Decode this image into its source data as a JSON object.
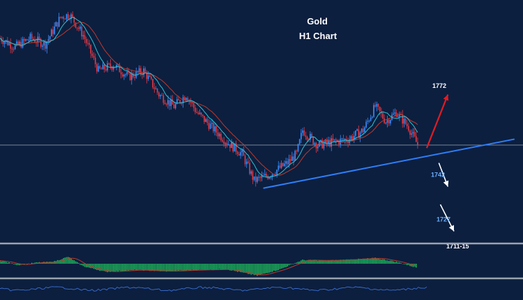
{
  "chart_data": {
    "type": "candlestick",
    "title": "Gold",
    "subtitle": "H1 Chart",
    "xlabel": "",
    "ylabel": "",
    "grid": false,
    "current_price": 1752,
    "ylim": [
      1721,
      1798
    ],
    "colors": {
      "background": "#0c1f3f",
      "candle_up": "#3d8dff",
      "candle_down": "#e63946",
      "ma_fast": "#2ec4d6",
      "ma_slow": "#c0392b",
      "trendline": "#2f7df6",
      "up_arrow": "#e31b23",
      "down_arrow": "#ffffff",
      "histogram": "#22c55e",
      "divider": "#9aa3ad",
      "level_light": "#ffffff",
      "level_blue": "#6aaeff"
    },
    "price_path": [
      {
        "i": 0,
        "p": 1788
      },
      {
        "i": 10,
        "p": 1785
      },
      {
        "i": 20,
        "p": 1788
      },
      {
        "i": 30,
        "p": 1786
      },
      {
        "i": 40,
        "p": 1795
      },
      {
        "i": 46,
        "p": 1796
      },
      {
        "i": 55,
        "p": 1789
      },
      {
        "i": 65,
        "p": 1777
      },
      {
        "i": 75,
        "p": 1779
      },
      {
        "i": 85,
        "p": 1775
      },
      {
        "i": 95,
        "p": 1777
      },
      {
        "i": 105,
        "p": 1769
      },
      {
        "i": 115,
        "p": 1765
      },
      {
        "i": 123,
        "p": 1769
      },
      {
        "i": 130,
        "p": 1763
      },
      {
        "i": 140,
        "p": 1758
      },
      {
        "i": 150,
        "p": 1753
      },
      {
        "i": 160,
        "p": 1749
      },
      {
        "i": 168,
        "p": 1740
      },
      {
        "i": 178,
        "p": 1742
      },
      {
        "i": 190,
        "p": 1746
      },
      {
        "i": 196,
        "p": 1749
      },
      {
        "i": 200,
        "p": 1757
      },
      {
        "i": 210,
        "p": 1752
      },
      {
        "i": 220,
        "p": 1753
      },
      {
        "i": 230,
        "p": 1754
      },
      {
        "i": 240,
        "p": 1757
      },
      {
        "i": 248,
        "p": 1765
      },
      {
        "i": 255,
        "p": 1760
      },
      {
        "i": 262,
        "p": 1763
      },
      {
        "i": 270,
        "p": 1758
      },
      {
        "i": 276,
        "p": 1752
      }
    ],
    "trendline": [
      {
        "i": 174,
        "p": 1737.5
      },
      {
        "i": 340,
        "p": 1754
      }
    ],
    "levels": [
      {
        "label": "1772",
        "price": 1772,
        "style": "light"
      },
      {
        "label": "1742",
        "price": 1742,
        "style": "blue"
      },
      {
        "label": "1727",
        "price": 1727,
        "style": "blue"
      },
      {
        "label": "1711-15",
        "price": 1718,
        "style": "light"
      }
    ],
    "projections": [
      {
        "from": {
          "i": 282,
          "p": 1751
        },
        "to": {
          "i": 296,
          "p": 1769
        },
        "style": "up"
      },
      {
        "from": {
          "i": 290,
          "p": 1746
        },
        "to": {
          "i": 296,
          "p": 1738
        },
        "style": "down"
      },
      {
        "from": {
          "i": 291,
          "p": 1732
        },
        "to": {
          "i": 300,
          "p": 1723
        },
        "style": "down"
      }
    ],
    "macd": {
      "baseline": 0,
      "path": [
        {
          "i": 0,
          "v": 0.5
        },
        {
          "i": 12,
          "v": -0.2
        },
        {
          "i": 25,
          "v": 0.2
        },
        {
          "i": 35,
          "v": 0.3
        },
        {
          "i": 45,
          "v": 1.1
        },
        {
          "i": 55,
          "v": -0.4
        },
        {
          "i": 70,
          "v": -1.3
        },
        {
          "i": 90,
          "v": -1.0
        },
        {
          "i": 110,
          "v": -1.2
        },
        {
          "i": 130,
          "v": -1.0
        },
        {
          "i": 150,
          "v": -0.9
        },
        {
          "i": 170,
          "v": -1.9
        },
        {
          "i": 185,
          "v": -0.9
        },
        {
          "i": 200,
          "v": 0.6
        },
        {
          "i": 215,
          "v": 0.5
        },
        {
          "i": 235,
          "v": 0.7
        },
        {
          "i": 248,
          "v": 0.9
        },
        {
          "i": 262,
          "v": 0.3
        },
        {
          "i": 275,
          "v": -0.6
        }
      ]
    }
  }
}
